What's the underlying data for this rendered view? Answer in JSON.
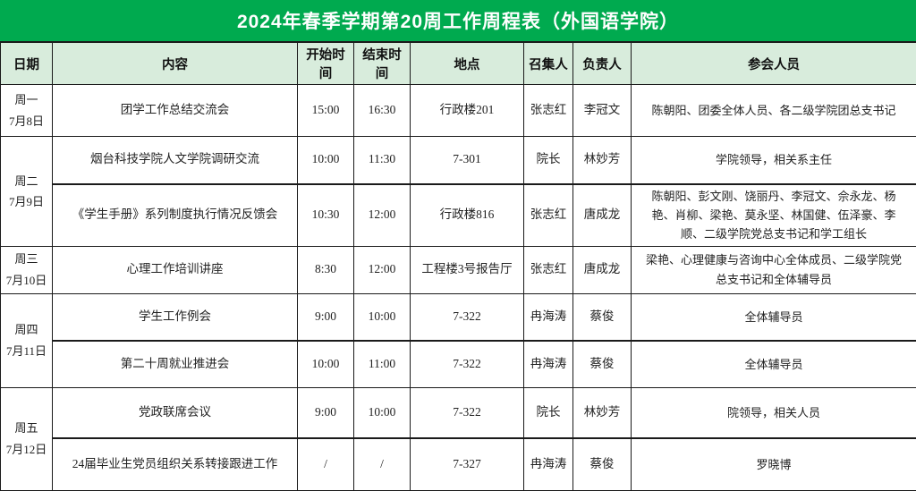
{
  "title": "2024年春季学期第20周工作周程表（外国语学院）",
  "colors": {
    "title_bg": "#00aa4f",
    "title_text": "#ffffff",
    "header_bg": "#d8ecdc",
    "border": "#1a1a1a",
    "body_bg": "#ffffff"
  },
  "table": {
    "headers": [
      "日期",
      "内容",
      "开始时间",
      "结束时间",
      "地点",
      "召集人",
      "负责人",
      "参会人员"
    ],
    "day_groups": [
      {
        "day": "周一",
        "date": "7月8日",
        "rows": [
          {
            "content": "团学工作总结交流会",
            "start": "15:00",
            "end": "16:30",
            "location": "行政楼201",
            "convener": "张志红",
            "lead": "李冠文",
            "participants": "陈朝阳、团委全体人员、各二级学院团总支书记"
          }
        ]
      },
      {
        "day": "周二",
        "date": "7月9日",
        "rows": [
          {
            "content": "烟台科技学院人文学院调研交流",
            "start": "10:00",
            "end": "11:30",
            "location": "7-301",
            "convener": "院长",
            "lead": "林妙芳",
            "participants": "学院领导，相关系主任"
          },
          {
            "content": "《学生手册》系列制度执行情况反馈会",
            "start": "10:30",
            "end": "12:00",
            "location": "行政楼816",
            "convener": "张志红",
            "lead": "唐成龙",
            "participants": "陈朝阳、彭文刚、饶丽丹、李冠文、佘永龙、杨艳、肖柳、梁艳、莫永坚、林国健、伍泽豪、李顺、二级学院党总支书记和学工组长"
          }
        ]
      },
      {
        "day": "周三",
        "date": "7月10日",
        "rows": [
          {
            "content": "心理工作培训讲座",
            "start": "8:30",
            "end": "12:00",
            "location": "工程楼3号报告厅",
            "convener": "张志红",
            "lead": "唐成龙",
            "participants": "梁艳、心理健康与咨询中心全体成员、二级学院党总支书记和全体辅导员"
          }
        ]
      },
      {
        "day": "周四",
        "date": "7月11日",
        "rows": [
          {
            "content": "学生工作例会",
            "start": "9:00",
            "end": "10:00",
            "location": "7-322",
            "convener": "冉海涛",
            "lead": "蔡俊",
            "participants": "全体辅导员"
          },
          {
            "content": "第二十周就业推进会",
            "start": "10:00",
            "end": "11:00",
            "location": "7-322",
            "convener": "冉海涛",
            "lead": "蔡俊",
            "participants": "全体辅导员"
          }
        ]
      },
      {
        "day": "周五",
        "date": "7月12日",
        "rows": [
          {
            "content": "党政联席会议",
            "start": "9:00",
            "end": "10:00",
            "location": "7-322",
            "convener": "院长",
            "lead": "林妙芳",
            "participants": "院领导，相关人员"
          },
          {
            "content": "24届毕业生党员组织关系转接跟进工作",
            "start": "/",
            "end": "/",
            "location": "7-327",
            "convener": "冉海涛",
            "lead": "蔡俊",
            "participants": "罗晓博"
          }
        ]
      }
    ]
  }
}
